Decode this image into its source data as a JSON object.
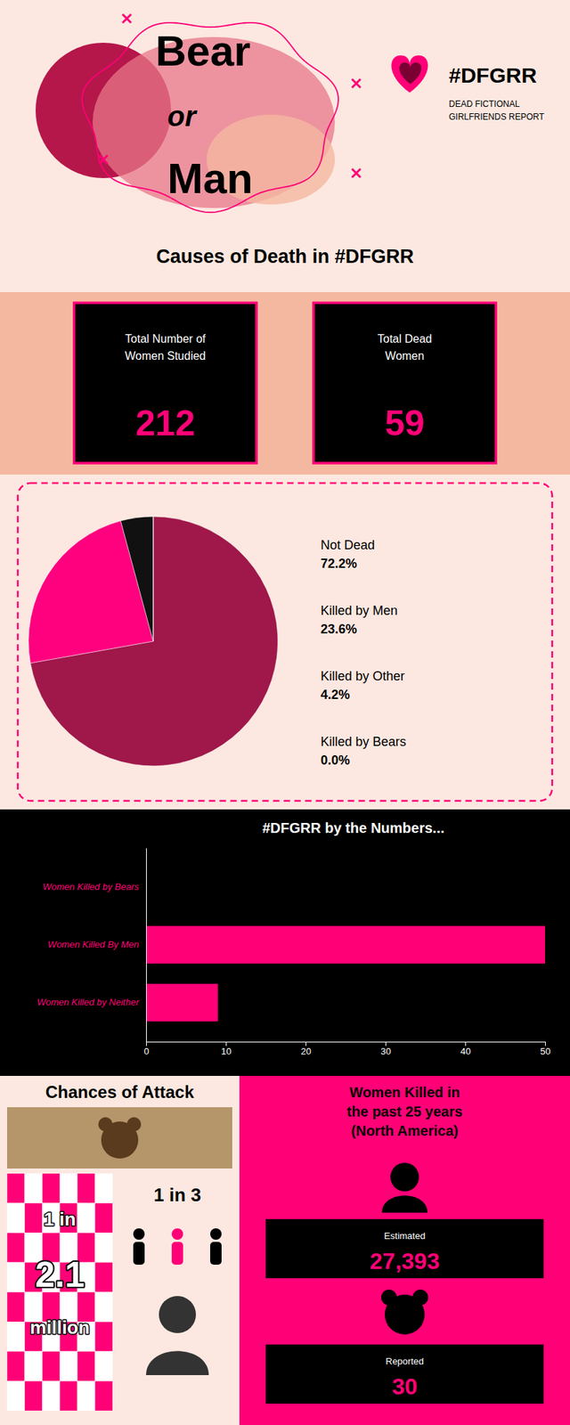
{
  "chart_data": [
    {
      "type": "pie",
      "title": "Causes of Death in #DFGRR",
      "categories": [
        "Not Dead",
        "Killed by Men",
        "Killed by Other",
        "Killed by Bears"
      ],
      "values": [
        72.2,
        23.6,
        4.2,
        0.0001
      ],
      "value_labels": [
        "72.2%",
        "23.6%",
        "4.2%",
        "0.0%"
      ],
      "colors": [
        "#a0174a",
        "#ff007f",
        "#111111",
        "#880044"
      ],
      "data_labels": true,
      "annotations": [
        "Bear",
        "or",
        "Man",
        "#DFGRR",
        "DEAD FICTIONAL\nGIRLFRIENDS REPORT",
        "Total Number of\nWomen Studied",
        "212",
        "Total Dead\nWomen",
        "59"
      ]
    },
    {
      "type": "bar",
      "title": "#DFGRR by the Numbers...",
      "orientation": "horizontal",
      "categories": [
        "Women Killed by Bears",
        "Women Killed By Men",
        "Women Killed by Neither"
      ],
      "values": [
        0,
        50,
        9
      ],
      "color": "#ff0077",
      "xlim": [
        0,
        50
      ],
      "xticks": [
        0,
        10,
        20,
        30,
        40,
        50
      ],
      "grid": false,
      "annotations": [
        "Chances of Attack",
        "1 in",
        "2.1",
        "million",
        "1 in 3",
        "Women Killed in\nthe past 25 years\n(North America)",
        "Estimated",
        "27,393",
        "Reported",
        "30"
      ]
    }
  ]
}
